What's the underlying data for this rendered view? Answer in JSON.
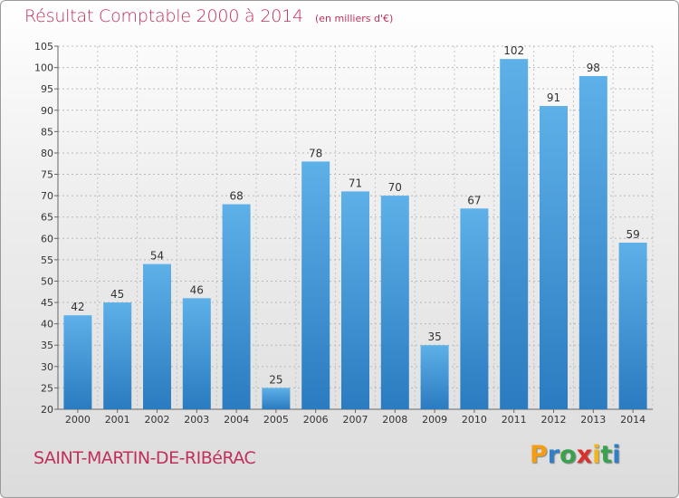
{
  "title": "Résultat Comptable 2000 à 2014",
  "unit_note": "(en milliers d'€)",
  "commune": "SAINT-MARTIN-DE-RIBéRAC",
  "logo": {
    "letters": [
      "P",
      "r",
      "o",
      "x",
      "i",
      "t",
      "i"
    ],
    "colors": [
      "#f29d13",
      "#2f7ec8",
      "#3aa14d",
      "#d8322d",
      "#f2b61c",
      "#3aa14d",
      "#2f7ec8"
    ]
  },
  "colors": {
    "bar_top": "#5eb0e8",
    "bar_bottom": "#2a7bc0",
    "title": "#c0305a"
  },
  "chart_data": {
    "type": "bar",
    "title": "Résultat Comptable 2000 à 2014",
    "categories": [
      "2000",
      "2001",
      "2002",
      "2003",
      "2004",
      "2005",
      "2006",
      "2007",
      "2008",
      "2009",
      "2010",
      "2011",
      "2012",
      "2013",
      "2014"
    ],
    "values": [
      42,
      45,
      54,
      46,
      68,
      25,
      78,
      71,
      70,
      35,
      67,
      102,
      91,
      98,
      59
    ],
    "ylim": [
      20,
      105
    ],
    "yticks": [
      20,
      25,
      30,
      35,
      40,
      45,
      50,
      55,
      60,
      65,
      70,
      75,
      80,
      85,
      90,
      95,
      100,
      105
    ],
    "grid": true
  }
}
